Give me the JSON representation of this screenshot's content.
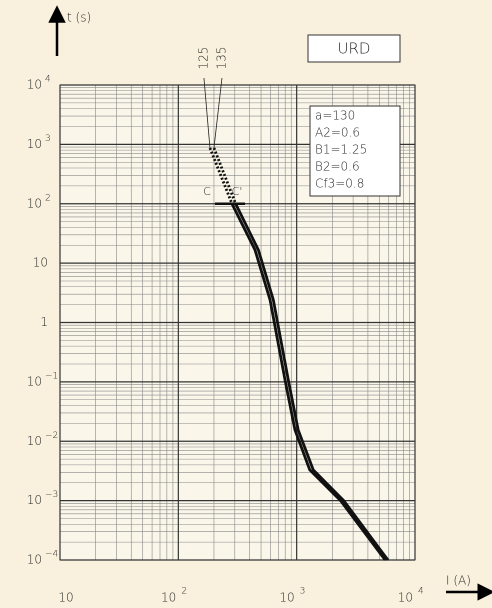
{
  "chart_data": {
    "type": "line",
    "xlabel": "I (A)",
    "ylabel": "t (s)",
    "log_x": true,
    "log_y": true,
    "grid": true,
    "xlim": [
      10,
      10000
    ],
    "ylim": [
      0.0001,
      10000
    ],
    "xticks": [
      10,
      {
        "value": 100,
        "label": "10",
        "sup": "2"
      },
      {
        "value": 1000,
        "label": "10",
        "sup": "3"
      },
      {
        "value": 10000,
        "label": "10",
        "sup": "4"
      }
    ],
    "yticks": [
      {
        "value": 0.0001,
        "label": "10",
        "sup": "−4"
      },
      {
        "value": 0.001,
        "label": "10",
        "sup": "−3"
      },
      {
        "value": 0.01,
        "label": "10",
        "sup": "−2"
      },
      {
        "value": 0.1,
        "label": "10",
        "sup": "−1"
      },
      1,
      10,
      {
        "value": 100,
        "label": "10",
        "sup": "2"
      },
      {
        "value": 1000,
        "label": "10",
        "sup": "3"
      },
      {
        "value": 10000,
        "label": "10",
        "sup": "4"
      }
    ],
    "series": [
      {
        "name": "125",
        "color": "#111111",
        "x": [
          185,
          284,
          445,
          596,
          798,
          968,
          1290,
          2350,
          5600
        ],
        "values": [
          870,
          100,
          16.6,
          2.4,
          0.107,
          0.0155,
          0.0033,
          0.001,
          0.0001
        ]
      },
      {
        "name": "135",
        "color": "#111111",
        "x": [
          200,
          305,
          475,
          635,
          850,
          1030,
          1380,
          2500,
          5900
        ],
        "values": [
          870,
          100,
          16.6,
          2.4,
          0.107,
          0.0155,
          0.0033,
          0.001,
          0.0001
        ]
      }
    ],
    "cc_bar": {
      "x": [
        204,
        366
      ],
      "value": 100
    },
    "annotations": [
      "C",
      "C'"
    ],
    "box_title": "URD",
    "params": [
      "a=130",
      "A2=0.6",
      "B1=1.25",
      "B2=0.6",
      "Cf3=0.8"
    ]
  }
}
